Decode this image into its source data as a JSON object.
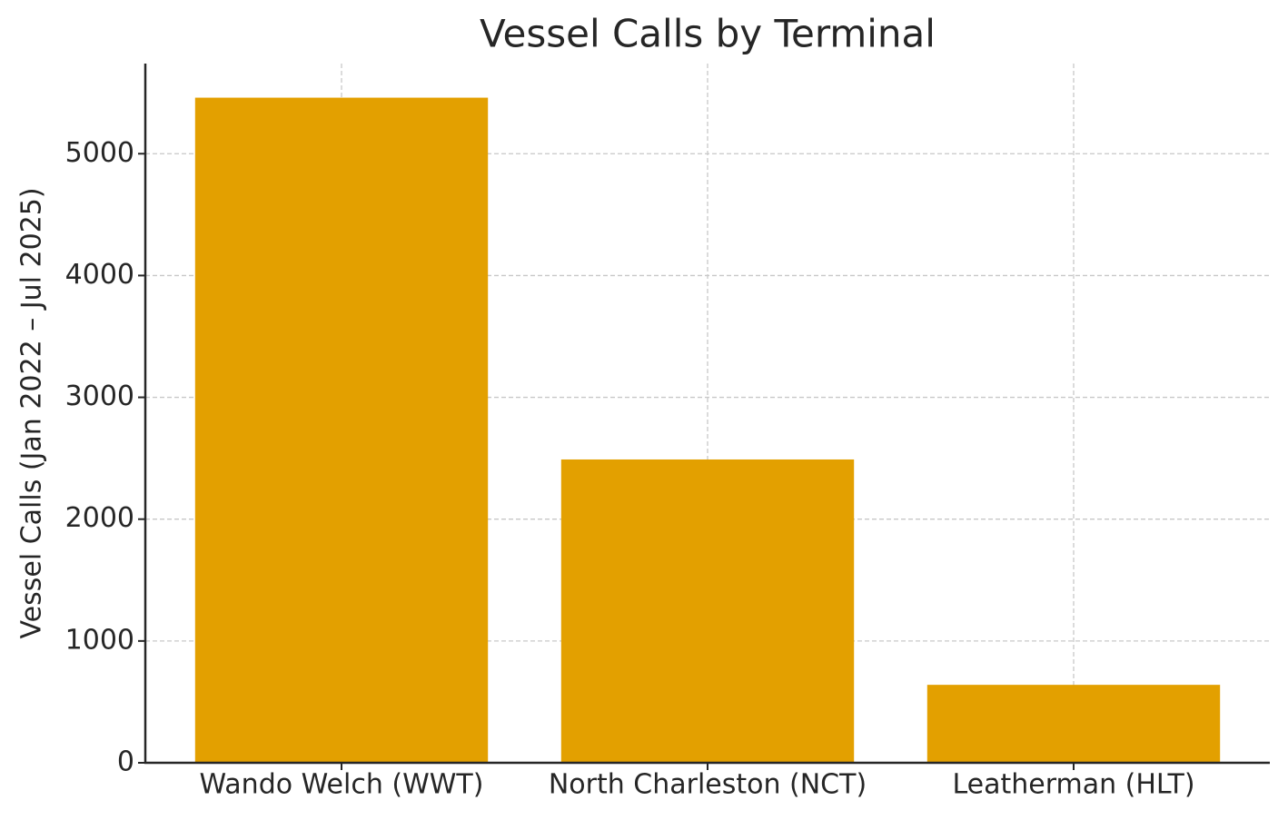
{
  "chart_data": {
    "type": "bar",
    "title": "Vessel Calls by Terminal",
    "y_label": "Vessel Calls (Jan 2022 – Jul 2025)",
    "categories": [
      "Wando Welch (WWT)",
      "North Charleston (NCT)",
      "Leatherman (HLT)"
    ],
    "values": [
      5460,
      2490,
      640
    ],
    "color": "#e3a000",
    "ylim": [
      0,
      5740
    ],
    "yticks": [
      0,
      1000,
      2000,
      3000,
      4000,
      5000
    ],
    "grid": true
  }
}
